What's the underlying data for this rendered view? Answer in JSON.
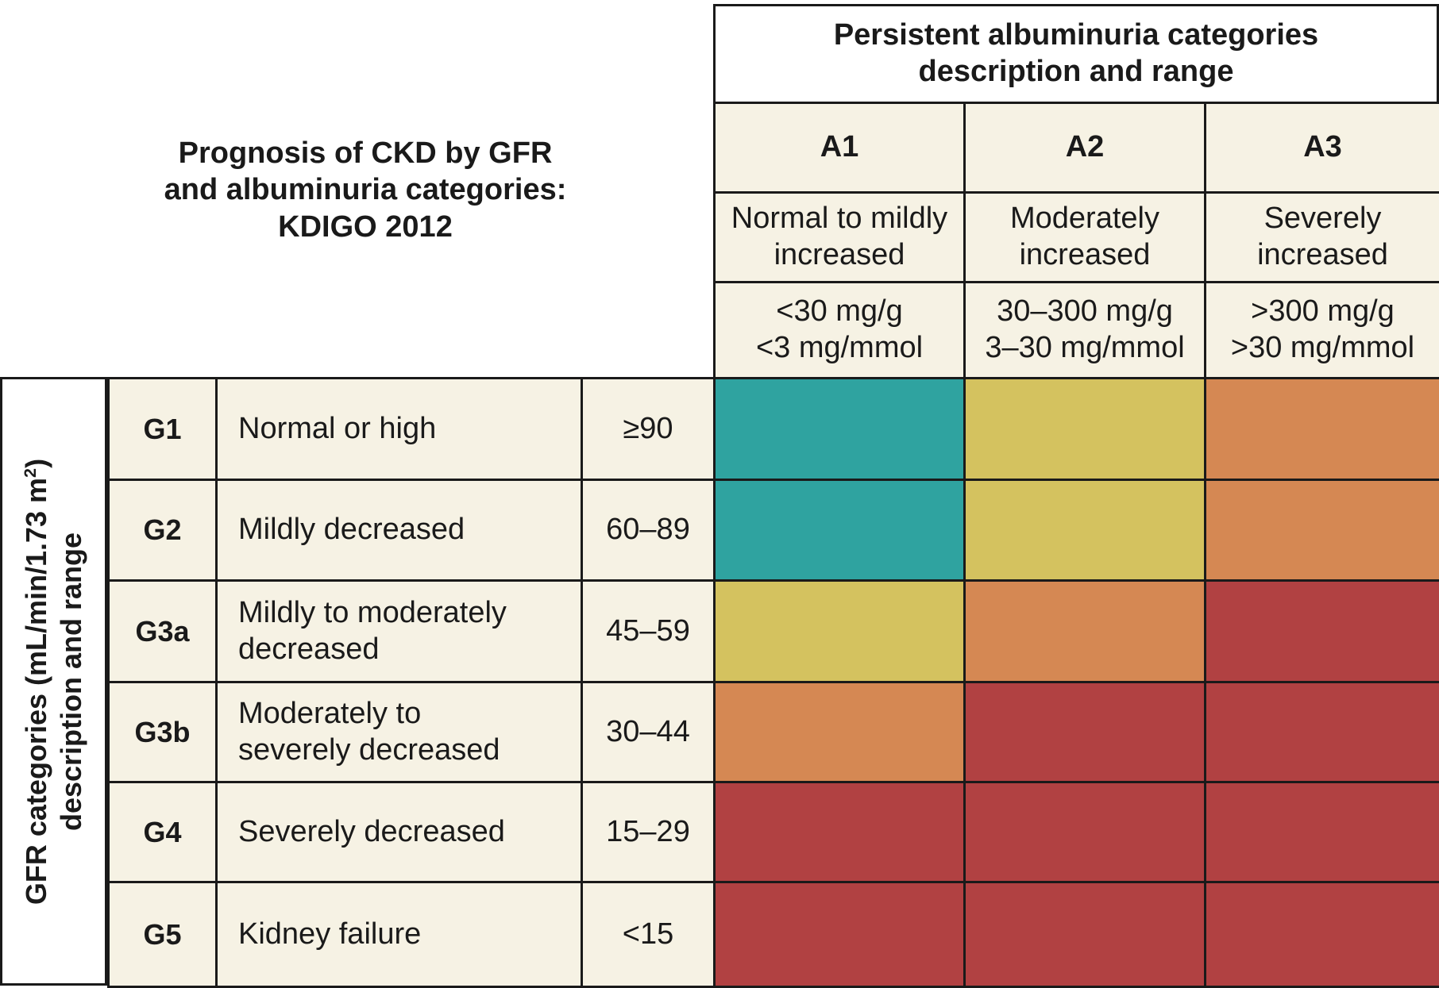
{
  "title": {
    "lines": [
      "Prognosis of CKD by GFR",
      "and albuminuria categories:",
      "KDIGO 2012"
    ]
  },
  "albuminuria_header": {
    "lines": [
      "Persistent albuminuria categories",
      "description and range"
    ]
  },
  "albuminuria_categories": [
    {
      "code": "A1",
      "description": [
        "Normal to mildly",
        "increased"
      ],
      "range": [
        "<30 mg/g",
        "<3 mg/mmol"
      ]
    },
    {
      "code": "A2",
      "description": [
        "Moderately",
        "increased"
      ],
      "range": [
        "30–300 mg/g",
        "3–30 mg/mmol"
      ]
    },
    {
      "code": "A3",
      "description": [
        "Severely",
        "increased"
      ],
      "range": [
        ">300 mg/g",
        ">30 mg/mmol"
      ]
    }
  ],
  "gfr_header": {
    "line1_prefix": "GFR categories (mL/min/1.73 m",
    "line1_sup": "2",
    "line1_suffix": ")",
    "line2": "description and range"
  },
  "gfr_categories": [
    {
      "code": "G1",
      "description": [
        "Normal or high"
      ],
      "range": "≥90"
    },
    {
      "code": "G2",
      "description": [
        "Mildly decreased"
      ],
      "range": "60–89"
    },
    {
      "code": "G3a",
      "description": [
        "Mildly to moderately",
        "decreased"
      ],
      "range": "45–59"
    },
    {
      "code": "G3b",
      "description": [
        "Moderately to",
        "severely decreased"
      ],
      "range": "30–44"
    },
    {
      "code": "G4",
      "description": [
        "Severely decreased"
      ],
      "range": "15–29"
    },
    {
      "code": "G5",
      "description": [
        "Kidney failure"
      ],
      "range": "<15"
    }
  ],
  "risk_colors": {
    "low": "#2fa3a0",
    "moderate": "#d4c25f",
    "high": "#d58853",
    "very_high": "#b14142"
  },
  "risk_matrix": [
    [
      "low",
      "moderate",
      "high"
    ],
    [
      "low",
      "moderate",
      "high"
    ],
    [
      "moderate",
      "high",
      "very_high"
    ],
    [
      "high",
      "very_high",
      "very_high"
    ],
    [
      "very_high",
      "very_high",
      "very_high"
    ],
    [
      "very_high",
      "very_high",
      "very_high"
    ]
  ]
}
